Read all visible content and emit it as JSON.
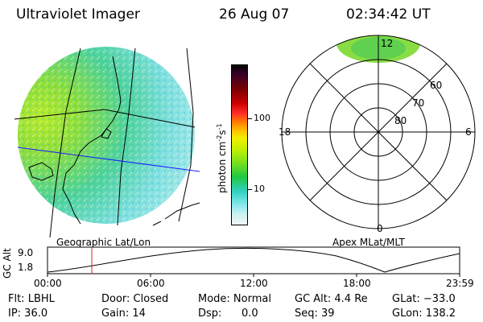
{
  "header": {
    "instrument": "Ultraviolet Imager",
    "date": "26 Aug 07",
    "time": "02:34:42 UT"
  },
  "left_panel": {
    "caption": "Geographic Lat/Lon"
  },
  "right_panel": {
    "caption": "Apex MLat/MLT",
    "mlt_labels": [
      "12",
      "18",
      "6",
      "0"
    ],
    "lat_labels": [
      "60",
      "70",
      "80"
    ]
  },
  "colorbar": {
    "unit_main": "photon cm",
    "unit_exp1": "-2",
    "unit_s": "s",
    "unit_exp2": "-1",
    "ticks": [
      "100",
      "10"
    ],
    "colors": [
      "#000000",
      "#3a0028",
      "#800000",
      "#cc0000",
      "#ff2a2a",
      "#ff8000",
      "#ffc000",
      "#f0f000",
      "#c0f000",
      "#70e020",
      "#20c840",
      "#30d0c0",
      "#80e8e8",
      "#c8f0f0",
      "#f0f8f8"
    ]
  },
  "altitude_plot": {
    "ylabel": "GC Alt",
    "yticks": [
      "9.0",
      "1.8"
    ],
    "xticks": [
      "00:00",
      "06:00",
      "12:00",
      "18:00",
      "23:59"
    ],
    "marker_time_hours": 2.58
  },
  "footer": {
    "filter": "Flt: LBHL",
    "ip": "IP: 36.0",
    "door": "Door: Closed",
    "gain": "Gain: 14",
    "mode": "Mode: Normal",
    "dsp_label": "Dsp:",
    "dsp_value": "0.0",
    "gc_alt": "GC Alt: 4.4 Re",
    "seq": "Seq: 39",
    "glat": "GLat: −33.0",
    "glon": "GLon: 138.2"
  }
}
